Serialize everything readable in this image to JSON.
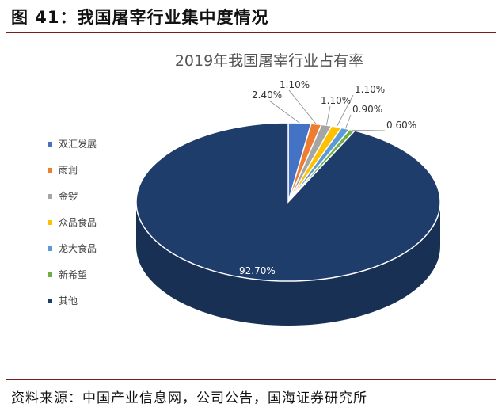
{
  "figure": {
    "title": "图 41：我国屠宰行业集中度情况",
    "source": "资料来源：中国产业信息网，公司公告，国海证券研究所"
  },
  "chart_data": {
    "type": "pie",
    "title": "2019年我国屠宰行业占有率",
    "legend_position": "left",
    "slices": [
      {
        "name": "双汇发展",
        "value": 2.4,
        "label": "2.40%",
        "color": "#4472c4"
      },
      {
        "name": "雨润",
        "value": 1.1,
        "label": "1.10%",
        "color": "#ed7d31"
      },
      {
        "name": "金锣",
        "value": 1.1,
        "label": "1.10%",
        "color": "#a5a5a5"
      },
      {
        "name": "众品食品",
        "value": 1.1,
        "label": "1.10%",
        "color": "#ffc000"
      },
      {
        "name": "龙大食品",
        "value": 0.9,
        "label": "0.90%",
        "color": "#5b9bd5"
      },
      {
        "name": "新希望",
        "value": 0.6,
        "label": "0.60%",
        "color": "#70ad47"
      },
      {
        "name": "其他",
        "value": 92.7,
        "label": "92.70%",
        "color": "#1f3d6b"
      }
    ]
  }
}
